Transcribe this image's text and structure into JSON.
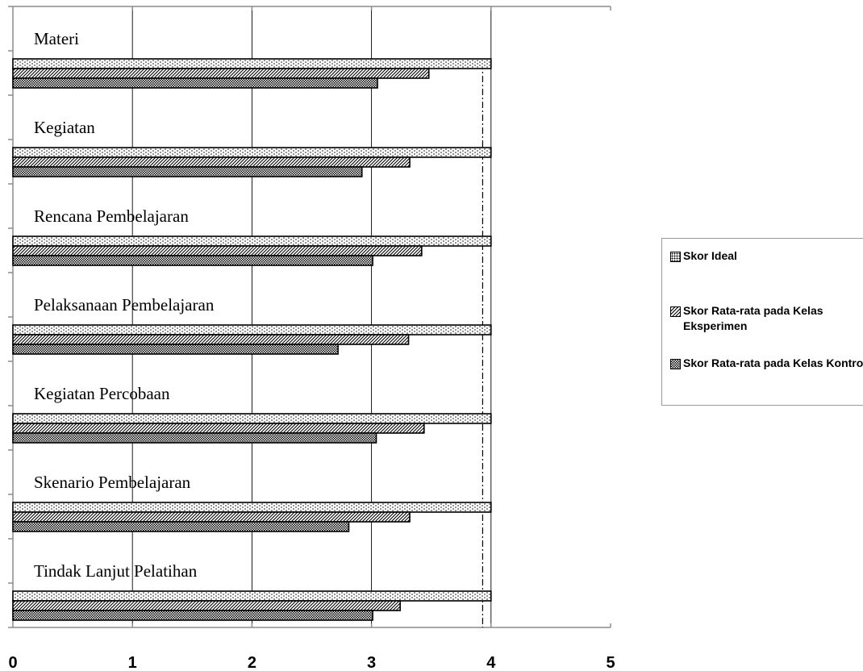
{
  "chart_data": {
    "type": "bar",
    "orientation": "horizontal",
    "categories": [
      "Materi",
      "Kegiatan",
      "Rencana Pembelajaran",
      "Pelaksanaan Pembelajaran",
      "Kegiatan Percobaan",
      "Skenario Pembelajaran",
      "Tindak Lanjut Pelatihan"
    ],
    "series": [
      {
        "name": "Skor Ideal",
        "values": [
          4,
          4,
          4,
          4,
          4,
          4,
          4
        ],
        "pattern": "dots"
      },
      {
        "name": "Skor Rata-rata pada Kelas Eksperimen",
        "values": [
          3.48,
          3.32,
          3.42,
          3.31,
          3.44,
          3.32,
          3.24
        ],
        "pattern": "diagonal"
      },
      {
        "name": "Skor Rata-rata pada Kelas Kontrol",
        "values": [
          3.05,
          2.92,
          3.01,
          2.72,
          3.04,
          2.81,
          3.01
        ],
        "pattern": "grid"
      }
    ],
    "xticks": [
      "0",
      "1",
      "2",
      "3",
      "4",
      "5"
    ],
    "xlim": [
      0,
      5
    ],
    "reference_line": 3.93,
    "grid": true,
    "legend_position": "right"
  }
}
